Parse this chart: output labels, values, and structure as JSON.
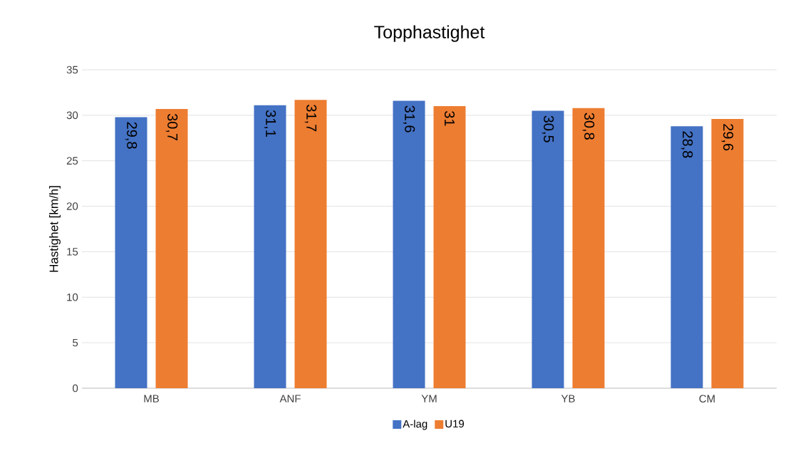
{
  "chart_data": {
    "type": "bar",
    "title": "Topphastighet",
    "ylabel": "Hastighet [km/h]",
    "categories": [
      "MB",
      "ANF",
      "YM",
      "YB",
      "CM"
    ],
    "series": [
      {
        "name": "A-lag",
        "color": "#4472c4",
        "values": [
          29.8,
          31.1,
          31.6,
          30.5,
          28.8
        ],
        "value_labels": [
          "29,8",
          "31,1",
          "31,6",
          "30,5",
          "28,8"
        ]
      },
      {
        "name": "U19",
        "color": "#ed7d31",
        "values": [
          30.7,
          31.7,
          31,
          30.8,
          29.6
        ],
        "value_labels": [
          "30,7",
          "31,7",
          "31",
          "30,8",
          "29,6"
        ]
      }
    ],
    "ylim": [
      0,
      35
    ],
    "yticks": [
      0,
      5,
      10,
      15,
      20,
      25,
      30,
      35
    ],
    "grid": "y",
    "legend": "bottom"
  }
}
